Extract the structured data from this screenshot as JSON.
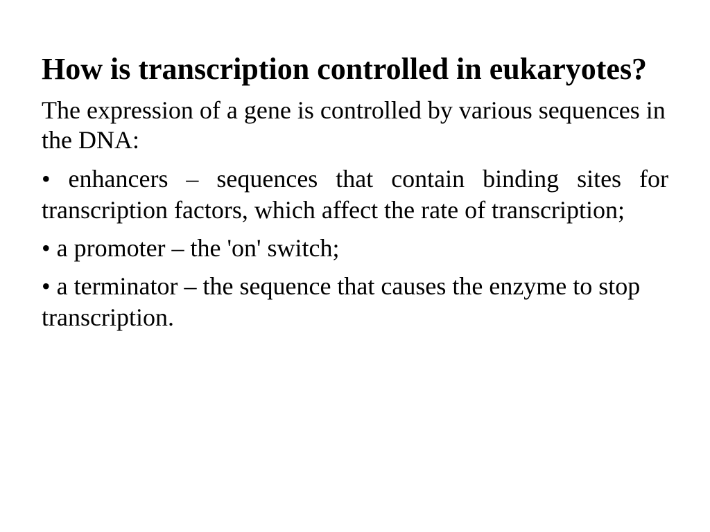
{
  "slide": {
    "title": "How is transcription controlled in eukaryotes?",
    "intro": "The expression of a gene is controlled by various sequences in the DNA:",
    "bullets": [
      "• enhancers – sequences that contain binding sites for transcription factors, which affect the rate of transcription;",
      "• a promoter – the 'on' switch;",
      "• a terminator – the sequence that causes the enzyme to stop transcription."
    ],
    "style": {
      "background_color": "#ffffff",
      "text_color": "#000000",
      "font_family": "Comic Sans MS",
      "title_fontsize": 44,
      "body_fontsize": 36,
      "title_fontweight": "bold"
    }
  }
}
